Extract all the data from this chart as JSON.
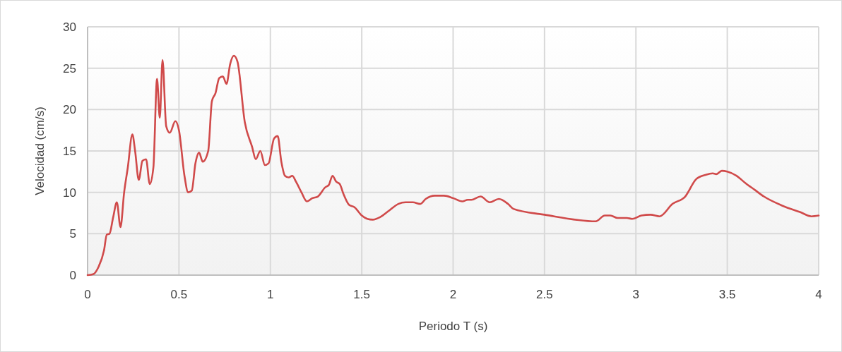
{
  "chart_data": {
    "type": "line",
    "xlabel": "Periodo T (s)",
    "ylabel": "Velocidad (cm/s)",
    "xlim": [
      0,
      4
    ],
    "xticks": [
      0,
      0.5,
      1,
      1.5,
      2,
      2.5,
      3,
      3.5,
      4
    ],
    "ylim": [
      0,
      30
    ],
    "yticks": [
      0,
      5,
      10,
      15,
      20,
      25,
      30
    ],
    "grid": true,
    "marker": "none",
    "line_style": "solid",
    "series": [
      {
        "color": "#d04a4a",
        "x": [
          0,
          0.03,
          0.06,
          0.09,
          0.105,
          0.12,
          0.14,
          0.16,
          0.18,
          0.2,
          0.22,
          0.245,
          0.26,
          0.28,
          0.3,
          0.32,
          0.34,
          0.36,
          0.38,
          0.395,
          0.41,
          0.43,
          0.45,
          0.48,
          0.5,
          0.53,
          0.55,
          0.57,
          0.59,
          0.61,
          0.63,
          0.66,
          0.68,
          0.7,
          0.72,
          0.74,
          0.76,
          0.78,
          0.8,
          0.82,
          0.86,
          0.9,
          0.92,
          0.945,
          0.97,
          0.99,
          1.02,
          1.04,
          1.06,
          1.08,
          1.1,
          1.12,
          1.14,
          1.17,
          1.2,
          1.23,
          1.26,
          1.3,
          1.32,
          1.34,
          1.36,
          1.38,
          1.4,
          1.43,
          1.46,
          1.5,
          1.53,
          1.56,
          1.6,
          1.65,
          1.7,
          1.74,
          1.78,
          1.82,
          1.85,
          1.9,
          1.95,
          2.0,
          2.05,
          2.08,
          2.1,
          2.15,
          2.2,
          2.25,
          2.3,
          2.33,
          2.5,
          2.78,
          2.83,
          2.86,
          2.9,
          2.95,
          2.98,
          3.03,
          3.08,
          3.13,
          3.2,
          3.27,
          3.33,
          3.38,
          3.42,
          3.44,
          3.47,
          3.5,
          3.55,
          3.6,
          3.65,
          3.7,
          3.8,
          3.9,
          3.96,
          4.0
        ],
        "values": [
          0,
          0.1,
          1,
          3,
          4.9,
          5,
          7,
          8.8,
          5.8,
          10,
          13,
          17,
          15,
          11.5,
          13.8,
          14,
          11,
          13,
          23.7,
          19,
          26,
          18,
          17.2,
          18.6,
          17.5,
          12,
          10,
          10.2,
          13.5,
          14.8,
          13.7,
          15,
          21,
          22,
          23.8,
          24,
          23.1,
          25.5,
          26.5,
          25.8,
          18.5,
          15.5,
          14,
          15,
          13.3,
          13.5,
          16.5,
          16.8,
          13.7,
          12,
          11.8,
          12,
          11.3,
          10,
          8.9,
          9.3,
          9.5,
          10.6,
          10.9,
          12,
          11.3,
          11,
          9.8,
          8.5,
          8.2,
          7.2,
          6.8,
          6.7,
          7,
          7.8,
          8.6,
          8.8,
          8.8,
          8.6,
          9.2,
          9.6,
          9.6,
          9.3,
          8.9,
          9.1,
          9.1,
          9.5,
          8.8,
          9.2,
          8.6,
          8,
          7.3,
          6.5,
          7.2,
          7.2,
          6.9,
          6.9,
          6.8,
          7.2,
          7.3,
          7.1,
          8.6,
          9.5,
          11.6,
          12.1,
          12.3,
          12.2,
          12.6,
          12.5,
          12,
          11.1,
          10.3,
          9.5,
          8.4,
          7.6,
          7.1,
          7.2
        ]
      }
    ]
  }
}
